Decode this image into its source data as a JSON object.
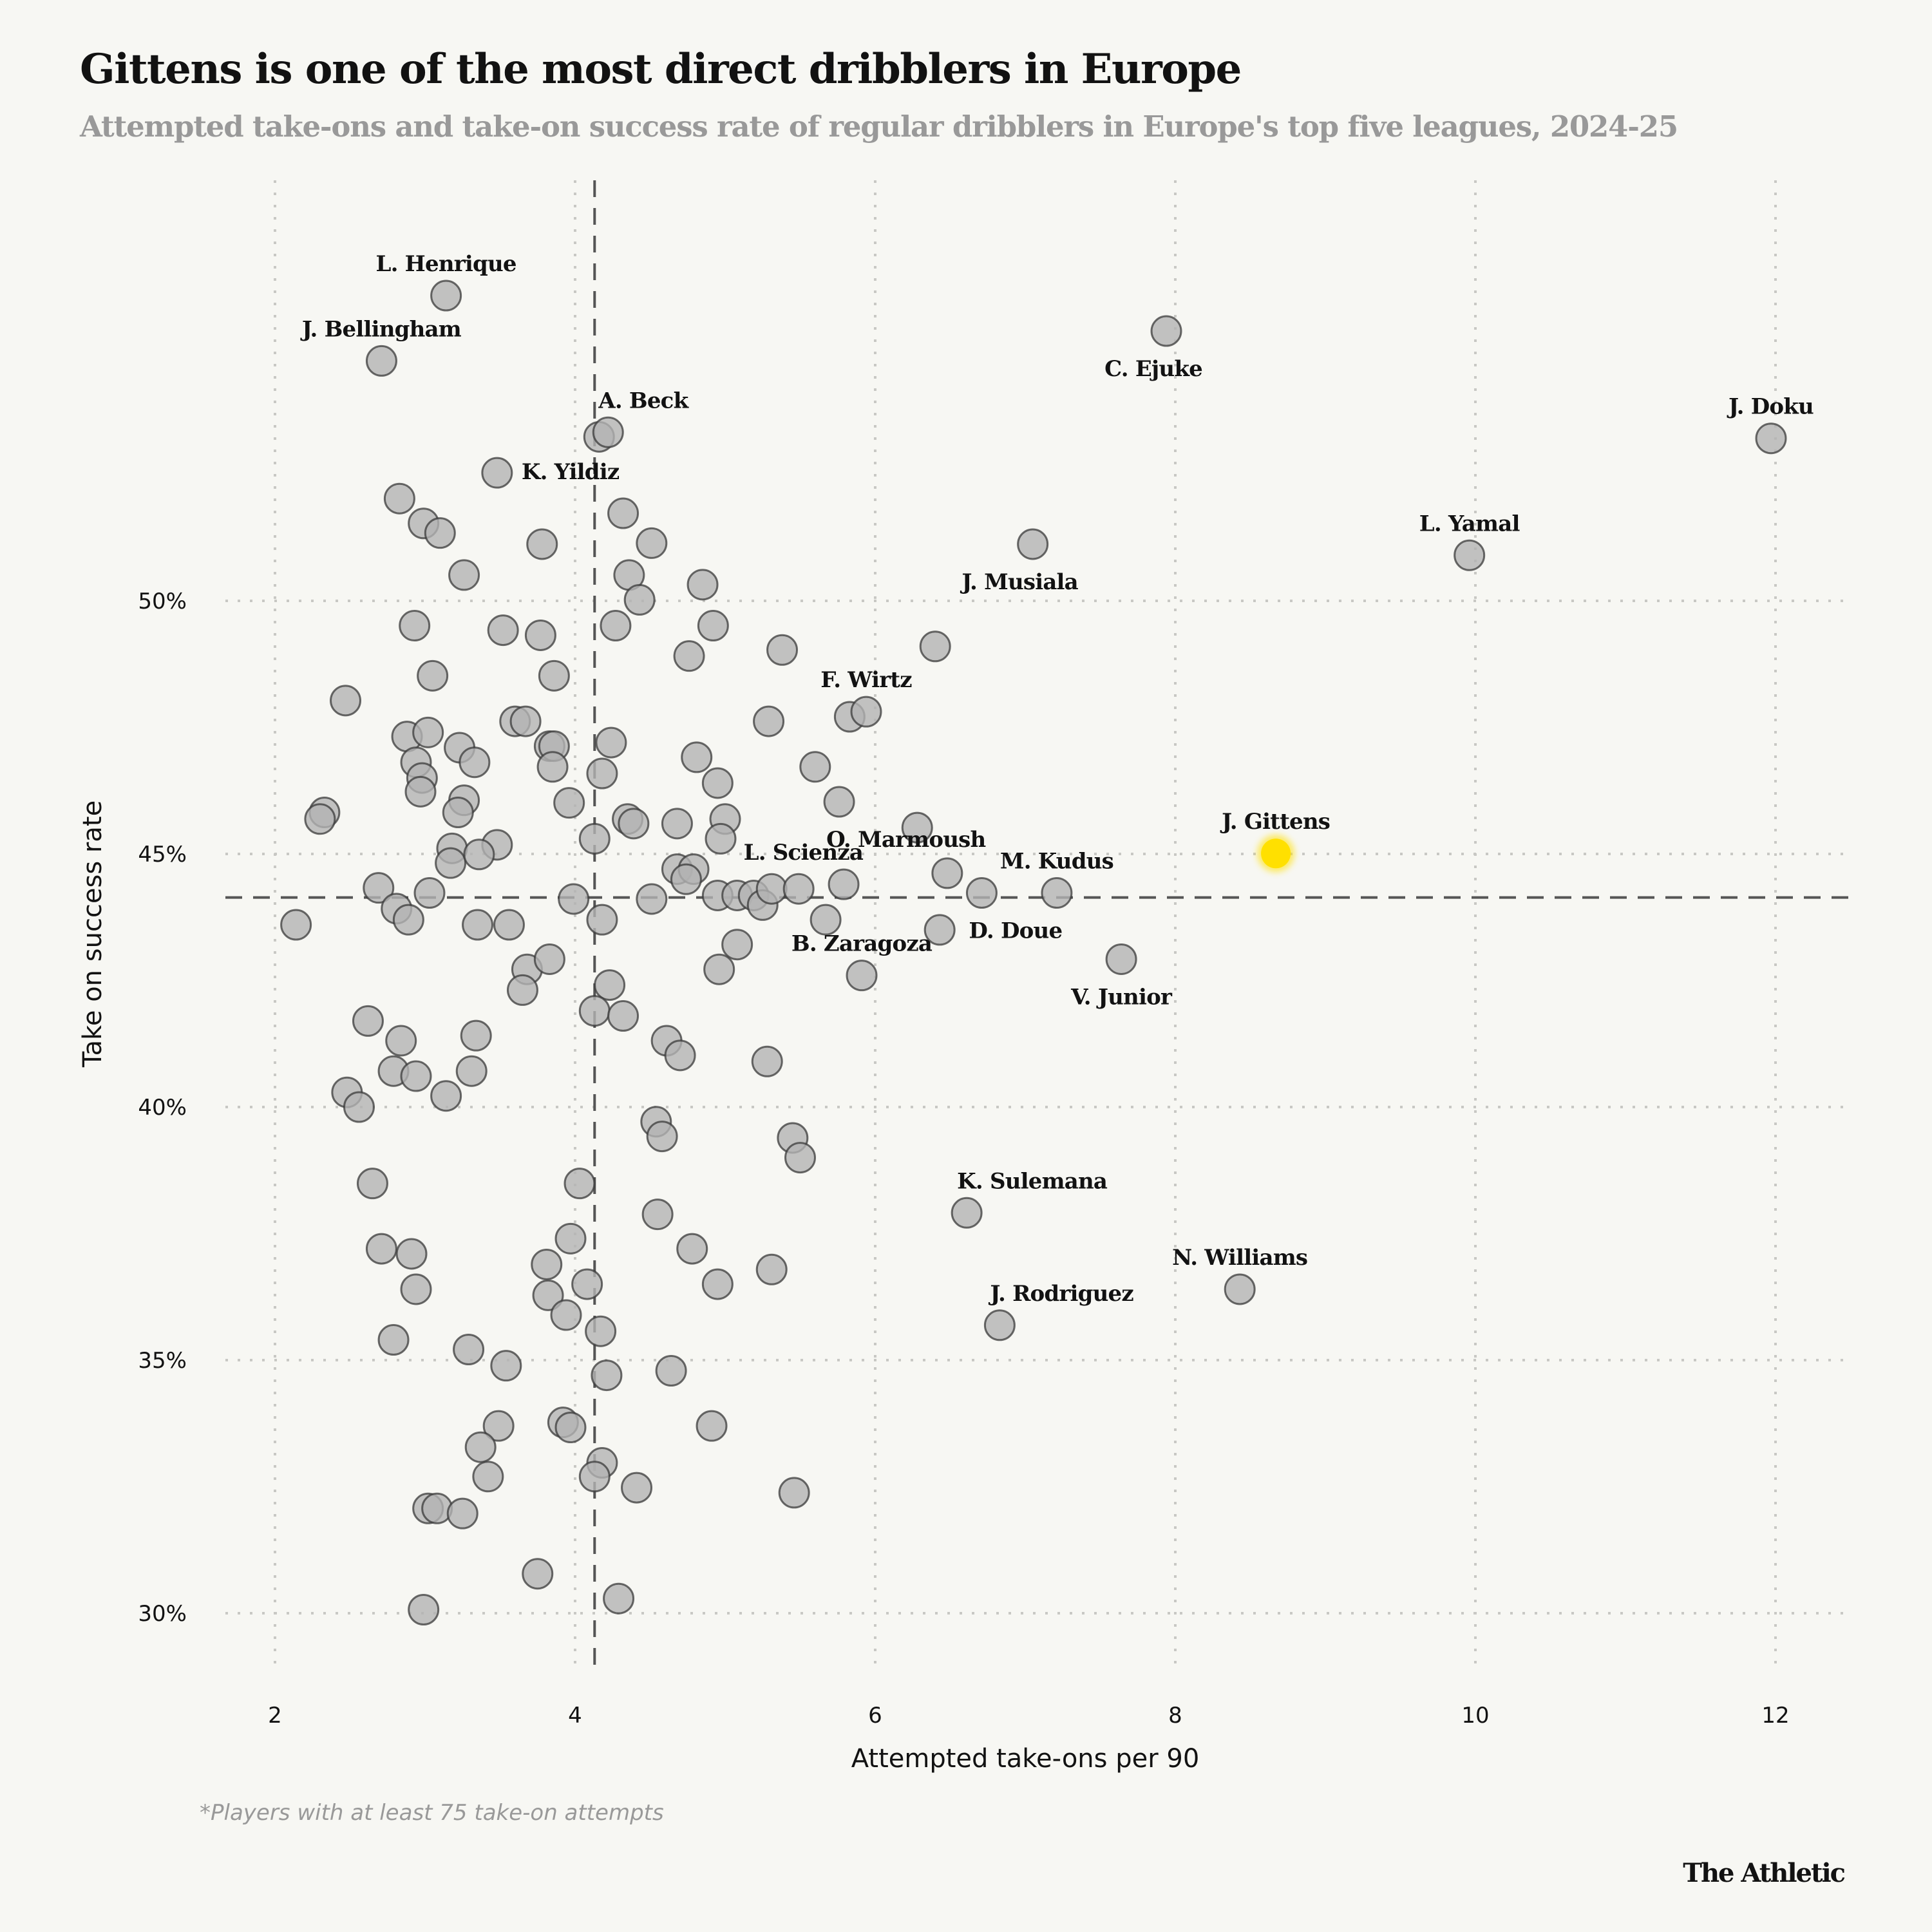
{
  "chart_data": {
    "type": "scatter",
    "title": "Gittens is one of the most direct dribblers in Europe",
    "subtitle": "Attempted take-ons and take-on success rate of regular dribblers in Europe's top five leagues, 2024-25",
    "xlabel": "Attempted take-ons per 90",
    "ylabel": "Take on success rate",
    "xlim": [
      1.6,
      12.5
    ],
    "ylim": [
      28.7,
      57.6
    ],
    "x_ticks": [
      2,
      4,
      6,
      8,
      10,
      12
    ],
    "x_tick_labels": [
      "2",
      "4",
      "6",
      "8",
      "10",
      "12"
    ],
    "y_ticks": [
      30,
      35,
      40,
      45,
      50
    ],
    "y_tick_labels": [
      "30%",
      "35%",
      "40%",
      "45%",
      "50%"
    ],
    "grid": true,
    "reference_lines": {
      "x_average": 4.13,
      "y_average": 44.14
    },
    "colors": {
      "point": "#b3b3b3",
      "point_stroke": "#3a3a3a",
      "highlight": "#ffe000",
      "background": "#f7f7f3"
    },
    "highlight_player": "J. Gittens",
    "labeled_points": [
      {
        "name": "L. Henrique",
        "x": 3.14,
        "y": 56.03,
        "label_pos": "top"
      },
      {
        "name": "J. Bellingham",
        "x": 2.71,
        "y": 54.74,
        "label_pos": "top"
      },
      {
        "name": "A. Beck",
        "x": 4.22,
        "y": 53.33,
        "label_pos": "top-right"
      },
      {
        "name": "K. Yildiz",
        "x": 3.48,
        "y": 52.53,
        "label_pos": "right"
      },
      {
        "name": "C. Ejuke",
        "x": 7.94,
        "y": 55.33,
        "label_pos": "bottom-left"
      },
      {
        "name": "J. Doku",
        "x": 11.97,
        "y": 53.21,
        "label_pos": "top"
      },
      {
        "name": "L. Yamal",
        "x": 9.96,
        "y": 50.9,
        "label_pos": "top"
      },
      {
        "name": "J. Musiala",
        "x": 7.05,
        "y": 51.12,
        "label_pos": "bottom-left"
      },
      {
        "name": "F. Wirtz",
        "x": 5.94,
        "y": 47.81,
        "label_pos": "top"
      },
      {
        "name": "O. Marmoush",
        "x": 5.76,
        "y": 46.03,
        "label_pos": "bottom-right"
      },
      {
        "name": "L. Scienza",
        "x": 5.79,
        "y": 44.4,
        "label_pos": "top-left"
      },
      {
        "name": "M. Kudus",
        "x": 7.21,
        "y": 44.23,
        "label_pos": "top"
      },
      {
        "name": "D. Doue",
        "x": 6.71,
        "y": 44.23,
        "label_pos": "bottom-right"
      },
      {
        "name": "J. Gittens",
        "x": 8.67,
        "y": 45.01,
        "label_pos": "top"
      },
      {
        "name": "V. Junior",
        "x": 7.64,
        "y": 42.92,
        "label_pos": "bottom"
      },
      {
        "name": "B. Zaragoza",
        "x": 5.91,
        "y": 42.6,
        "label_pos": "top"
      },
      {
        "name": "K. Sulemana",
        "x": 6.61,
        "y": 37.91,
        "label_pos": "top-right"
      },
      {
        "name": "N. Williams",
        "x": 8.43,
        "y": 36.4,
        "label_pos": "top"
      },
      {
        "name": "J. Rodriguez",
        "x": 6.83,
        "y": 35.69,
        "label_pos": "top-right"
      }
    ],
    "points": [
      [
        4.16,
        53.24
      ],
      [
        2.83,
        52.02
      ],
      [
        2.99,
        51.53
      ],
      [
        3.1,
        51.34
      ],
      [
        3.26,
        50.51
      ],
      [
        2.93,
        49.51
      ],
      [
        3.05,
        48.52
      ],
      [
        2.47,
        48.03
      ],
      [
        3.52,
        49.42
      ],
      [
        3.77,
        49.32
      ],
      [
        3.78,
        51.12
      ],
      [
        3.86,
        48.52
      ],
      [
        2.33,
        45.82
      ],
      [
        2.3,
        45.69
      ],
      [
        2.88,
        47.32
      ],
      [
        3.02,
        47.4
      ],
      [
        3.6,
        47.62
      ],
      [
        3.67,
        47.62
      ],
      [
        3.83,
        47.13
      ],
      [
        3.86,
        47.13
      ],
      [
        3.23,
        47.1
      ],
      [
        3.33,
        46.81
      ],
      [
        2.94,
        46.81
      ],
      [
        2.98,
        46.5
      ],
      [
        2.97,
        46.23
      ],
      [
        3.26,
        46.06
      ],
      [
        3.22,
        45.82
      ],
      [
        3.85,
        46.72
      ],
      [
        3.96,
        46.01
      ],
      [
        3.48,
        45.18
      ],
      [
        3.18,
        45.11
      ],
      [
        3.17,
        44.82
      ],
      [
        3.36,
        44.99
      ],
      [
        2.69,
        44.33
      ],
      [
        2.81,
        43.92
      ],
      [
        2.89,
        43.7
      ],
      [
        3.03,
        44.23
      ],
      [
        2.14,
        43.6
      ],
      [
        3.35,
        43.6
      ],
      [
        3.56,
        43.6
      ],
      [
        3.99,
        44.11
      ],
      [
        4.18,
        43.7
      ],
      [
        3.68,
        42.72
      ],
      [
        3.83,
        42.92
      ],
      [
        3.65,
        42.31
      ],
      [
        4.23,
        42.41
      ],
      [
        4.13,
        41.9
      ],
      [
        4.32,
        41.8
      ],
      [
        2.62,
        41.7
      ],
      [
        2.84,
        41.31
      ],
      [
        3.34,
        41.41
      ],
      [
        2.79,
        40.71
      ],
      [
        2.94,
        40.61
      ],
      [
        3.31,
        40.71
      ],
      [
        2.48,
        40.29
      ],
      [
        2.56,
        40.0
      ],
      [
        3.14,
        40.22
      ],
      [
        2.65,
        38.49
      ],
      [
        2.71,
        37.2
      ],
      [
        2.91,
        37.1
      ],
      [
        2.94,
        36.4
      ],
      [
        4.03,
        38.49
      ],
      [
        3.97,
        37.4
      ],
      [
        3.81,
        36.89
      ],
      [
        4.08,
        36.5
      ],
      [
        3.82,
        36.28
      ],
      [
        3.94,
        35.89
      ],
      [
        4.17,
        35.57
      ],
      [
        2.79,
        35.4
      ],
      [
        3.29,
        35.21
      ],
      [
        3.54,
        34.89
      ],
      [
        4.21,
        34.7
      ],
      [
        3.92,
        33.77
      ],
      [
        3.49,
        33.7
      ],
      [
        3.97,
        33.67
      ],
      [
        3.37,
        33.28
      ],
      [
        3.42,
        32.7
      ],
      [
        4.18,
        32.97
      ],
      [
        4.13,
        32.7
      ],
      [
        4.41,
        32.48
      ],
      [
        3.02,
        32.07
      ],
      [
        3.08,
        32.07
      ],
      [
        3.25,
        31.97
      ],
      [
        3.75,
        30.78
      ],
      [
        2.99,
        30.07
      ],
      [
        4.29,
        30.29
      ],
      [
        4.32,
        51.73
      ],
      [
        4.36,
        50.51
      ],
      [
        4.43,
        50.02
      ],
      [
        4.51,
        51.14
      ],
      [
        4.27,
        49.51
      ],
      [
        4.85,
        50.32
      ],
      [
        4.76,
        48.91
      ],
      [
        4.92,
        49.51
      ],
      [
        5.38,
        49.03
      ],
      [
        5.29,
        47.62
      ],
      [
        4.81,
        46.91
      ],
      [
        4.95,
        46.4
      ],
      [
        5.0,
        45.69
      ],
      [
        4.97,
        45.3
      ],
      [
        4.24,
        47.2
      ],
      [
        4.18,
        46.59
      ],
      [
        4.13,
        45.3
      ],
      [
        4.35,
        45.69
      ],
      [
        4.39,
        45.6
      ],
      [
        4.68,
        45.6
      ],
      [
        4.68,
        44.7
      ],
      [
        4.79,
        44.7
      ],
      [
        4.74,
        44.5
      ],
      [
        4.51,
        44.11
      ],
      [
        4.95,
        44.18
      ],
      [
        5.08,
        44.18
      ],
      [
        5.19,
        44.18
      ],
      [
        5.25,
        43.99
      ],
      [
        5.31,
        44.31
      ],
      [
        5.49,
        44.31
      ],
      [
        5.67,
        43.7
      ],
      [
        6.28,
        45.52
      ],
      [
        6.48,
        44.62
      ],
      [
        6.43,
        43.5
      ],
      [
        5.08,
        43.21
      ],
      [
        4.96,
        42.72
      ],
      [
        4.61,
        41.31
      ],
      [
        4.7,
        41.02
      ],
      [
        5.28,
        40.9
      ],
      [
        4.54,
        39.71
      ],
      [
        4.58,
        39.42
      ],
      [
        5.45,
        39.39
      ],
      [
        5.5,
        39.0
      ],
      [
        4.55,
        37.88
      ],
      [
        4.78,
        37.2
      ],
      [
        4.95,
        36.5
      ],
      [
        5.31,
        36.79
      ],
      [
        4.64,
        34.79
      ],
      [
        4.91,
        33.7
      ],
      [
        5.46,
        32.38
      ],
      [
        6.4,
        49.1
      ],
      [
        5.83,
        47.71
      ],
      [
        5.6,
        46.72
      ]
    ]
  },
  "footnote": "*Players with at least 75 take-on attempts",
  "brand": "The Athletic"
}
